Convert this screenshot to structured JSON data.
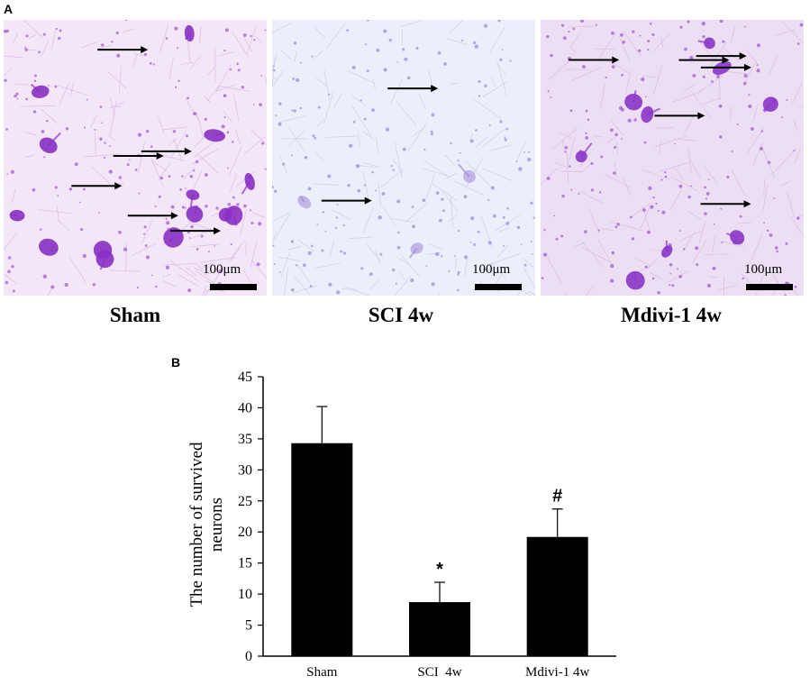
{
  "panel_a": {
    "letter": "A",
    "images": [
      {
        "caption": "Sham",
        "scale_label": "100μm",
        "tone": "#f3e6f6",
        "cell_color": "#8a2fc4",
        "cell_density": "high"
      },
      {
        "caption": "SCI 4w",
        "scale_label": "100μm",
        "tone": "#eceefa",
        "cell_color": "#a088d8",
        "cell_density": "low"
      },
      {
        "caption": "Mdivi-1 4w",
        "scale_label": "100μm",
        "tone": "#ecdff3",
        "cell_color": "#8a34c8",
        "cell_density": "medium"
      }
    ]
  },
  "panel_b": {
    "letter": "B"
  },
  "chart_data": {
    "type": "bar",
    "title": "",
    "xlabel": "",
    "ylabel_lines": [
      "The number of survived",
      "neurons"
    ],
    "categories": [
      "Sham",
      "SCI  4w",
      "Mdivi-1 4w"
    ],
    "series": [
      {
        "values": [
          34.3,
          8.7,
          19.2
        ],
        "errors": [
          5.9,
          3.2,
          4.5
        ],
        "color": "#000000"
      }
    ],
    "significance": [
      "",
      "*",
      "#"
    ],
    "ylim": [
      0,
      45
    ],
    "yticks": [
      0,
      5,
      10,
      15,
      20,
      25,
      30,
      35,
      40,
      45
    ],
    "grid": false,
    "legend": "none"
  }
}
